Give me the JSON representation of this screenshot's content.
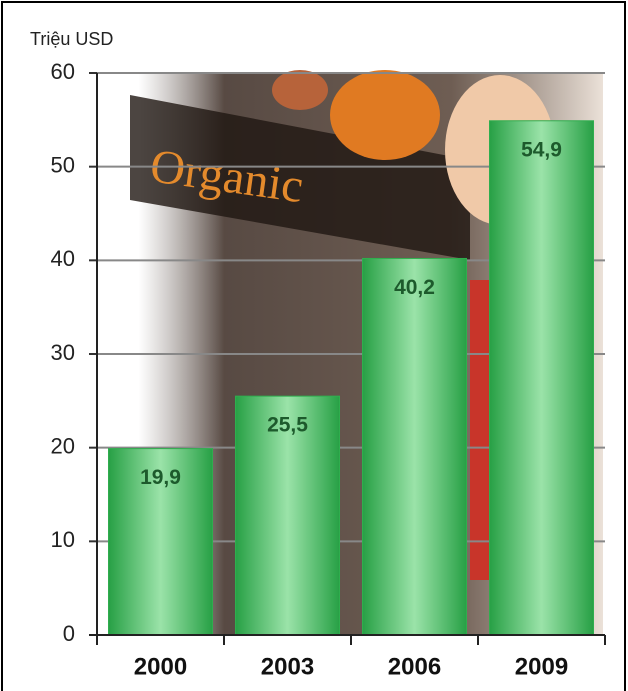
{
  "chart_data": {
    "type": "bar",
    "y_label": "Triệu USD",
    "categories": [
      "2000",
      "2003",
      "2006",
      "2009"
    ],
    "values": [
      19.9,
      25.5,
      40.2,
      54.9
    ],
    "value_labels": [
      "19,9",
      "25,5",
      "40,2",
      "54,9"
    ],
    "color": "#2fae4e",
    "ylim": [
      0,
      60
    ],
    "yticks": [
      0,
      10,
      20,
      30,
      40,
      50,
      60
    ],
    "grid": true
  }
}
